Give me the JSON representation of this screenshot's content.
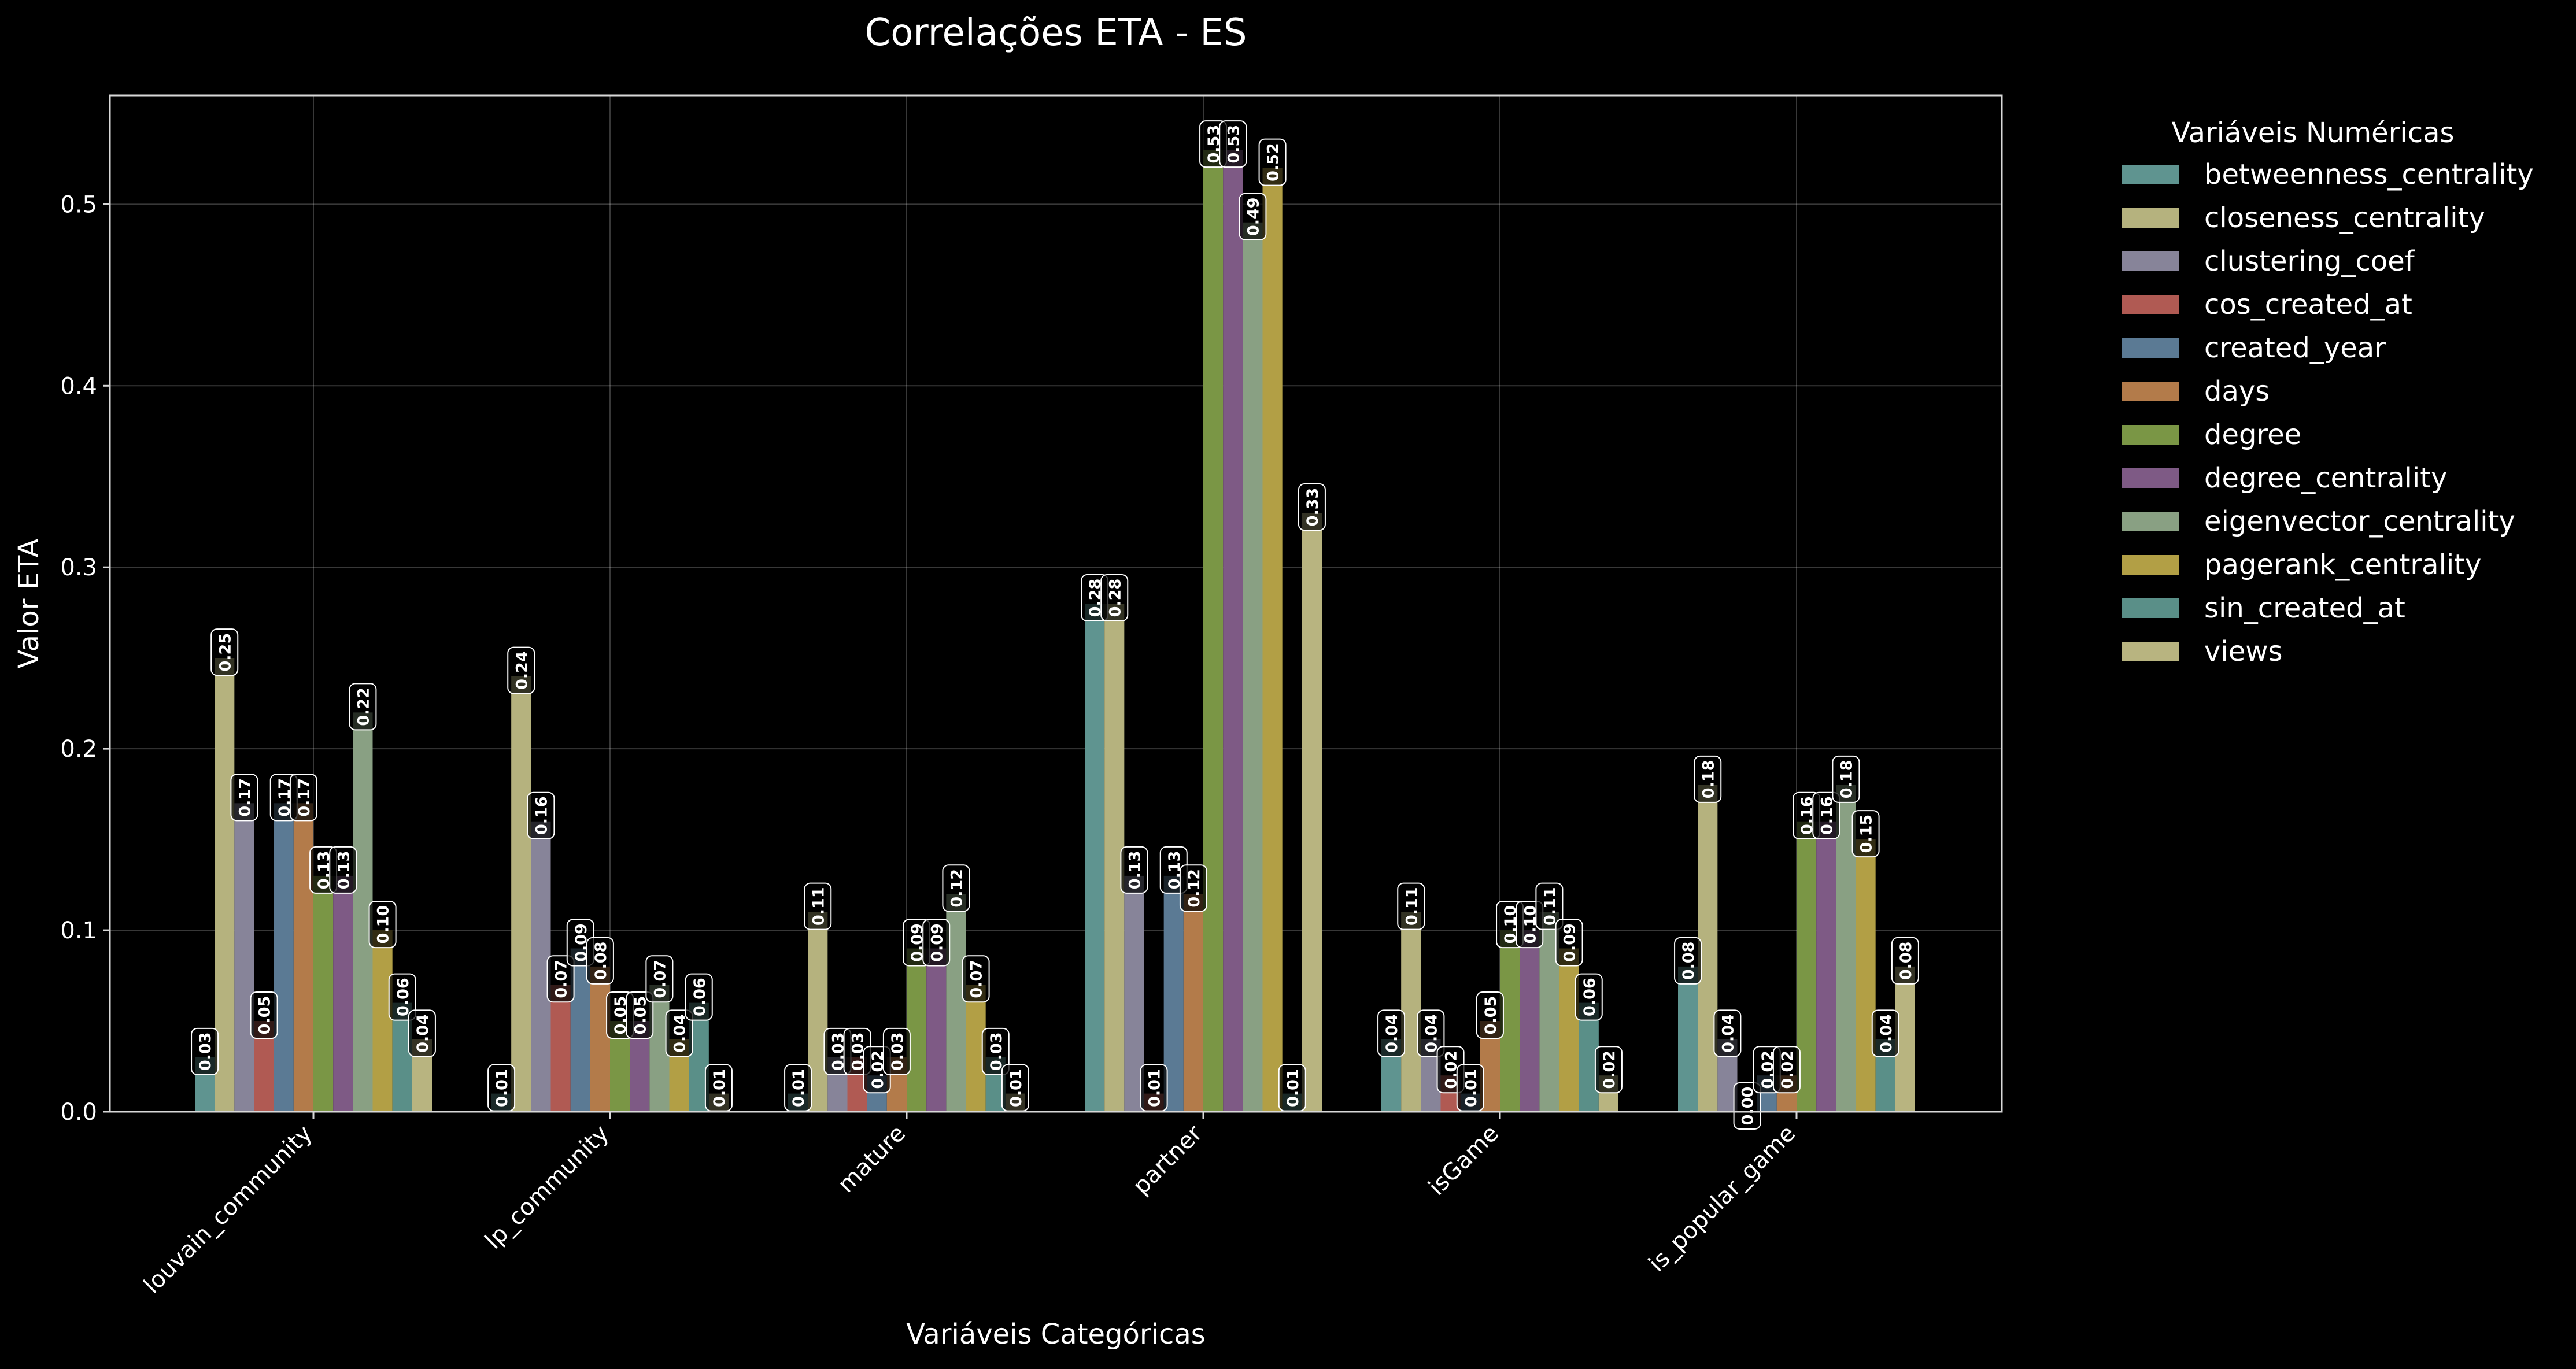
{
  "chart_data": {
    "type": "bar",
    "title": "Correlações ETA - ES",
    "xlabel": "Variáveis Categóricas",
    "ylabel": "Valor ETA",
    "ylim": [
      0,
      0.56
    ],
    "yticks": [
      "0.0",
      "0.1",
      "0.2",
      "0.3",
      "0.4",
      "0.5"
    ],
    "grid": true,
    "legend_title": "Variáveis Numéricas",
    "legend_position": "outside-right",
    "categories": [
      "louvain_community",
      "lp_community",
      "mature",
      "partner",
      "isGame",
      "is_popular_game"
    ],
    "series": [
      {
        "name": "betweenness_centrality",
        "color": "#5f9490",
        "values": [
          0.03,
          0.01,
          0.01,
          0.28,
          0.04,
          0.08
        ],
        "labels": [
          "0.03",
          "0.01",
          "0.01",
          "0.28",
          "0.04",
          "0.08"
        ]
      },
      {
        "name": "closeness_centrality",
        "color": "#b5b27e",
        "values": [
          0.25,
          0.24,
          0.11,
          0.28,
          0.11,
          0.18
        ],
        "labels": [
          "0.25",
          "0.24",
          "0.11",
          "0.28",
          "0.11",
          "0.18"
        ]
      },
      {
        "name": "clustering_coef",
        "color": "#878499",
        "values": [
          0.17,
          0.16,
          0.03,
          0.13,
          0.04,
          0.04
        ],
        "labels": [
          "0.17",
          "0.16",
          "0.03",
          "0.13",
          "0.04",
          "0.04"
        ]
      },
      {
        "name": "cos_created_at",
        "color": "#b05a53",
        "values": [
          0.05,
          0.07,
          0.03,
          0.01,
          0.02,
          0.0
        ],
        "labels": [
          "0.05",
          "0.07",
          "0.03",
          "0.01",
          "0.02",
          "0.00"
        ]
      },
      {
        "name": "created_year",
        "color": "#5b7a94",
        "values": [
          0.17,
          0.09,
          0.02,
          0.13,
          0.01,
          0.02
        ],
        "labels": [
          "0.17",
          "0.09",
          "0.02",
          "0.13",
          "0.01",
          "0.02"
        ]
      },
      {
        "name": "days",
        "color": "#b37b4a",
        "values": [
          0.17,
          0.08,
          0.03,
          0.12,
          0.05,
          0.02
        ],
        "labels": [
          "0.17",
          "0.08",
          "0.03",
          "0.12",
          "0.05",
          "0.02"
        ]
      },
      {
        "name": "degree",
        "color": "#7a9645",
        "values": [
          0.13,
          0.05,
          0.09,
          0.53,
          0.1,
          0.16
        ],
        "labels": [
          "0.13",
          "0.05",
          "0.09",
          "0.53",
          "0.10",
          "0.16"
        ]
      },
      {
        "name": "degree_centrality",
        "color": "#7e5a85",
        "values": [
          0.13,
          0.05,
          0.09,
          0.53,
          0.1,
          0.16
        ],
        "labels": [
          "0.13",
          "0.05",
          "0.09",
          "0.53",
          "0.10",
          "0.16"
        ]
      },
      {
        "name": "eigenvector_centrality",
        "color": "#89a083",
        "values": [
          0.22,
          0.07,
          0.12,
          0.49,
          0.11,
          0.18
        ],
        "labels": [
          "0.22",
          "0.07",
          "0.12",
          "0.49",
          "0.11",
          "0.18"
        ]
      },
      {
        "name": "pagerank_centrality",
        "color": "#b29f45",
        "values": [
          0.1,
          0.04,
          0.07,
          0.52,
          0.09,
          0.15
        ],
        "labels": [
          "0.10",
          "0.04",
          "0.07",
          "0.52",
          "0.09",
          "0.15"
        ]
      },
      {
        "name": "sin_created_at",
        "color": "#5a8f88",
        "values": [
          0.06,
          0.06,
          0.03,
          0.01,
          0.06,
          0.04
        ],
        "labels": [
          "0.06",
          "0.06",
          "0.03",
          "0.01",
          "0.06",
          "0.04"
        ]
      },
      {
        "name": "views",
        "color": "#b8b480",
        "values": [
          0.04,
          0.01,
          0.01,
          0.33,
          0.02,
          0.08
        ],
        "labels": [
          "0.04",
          "0.01",
          "0.01",
          "0.33",
          "0.02",
          "0.08"
        ]
      }
    ]
  }
}
